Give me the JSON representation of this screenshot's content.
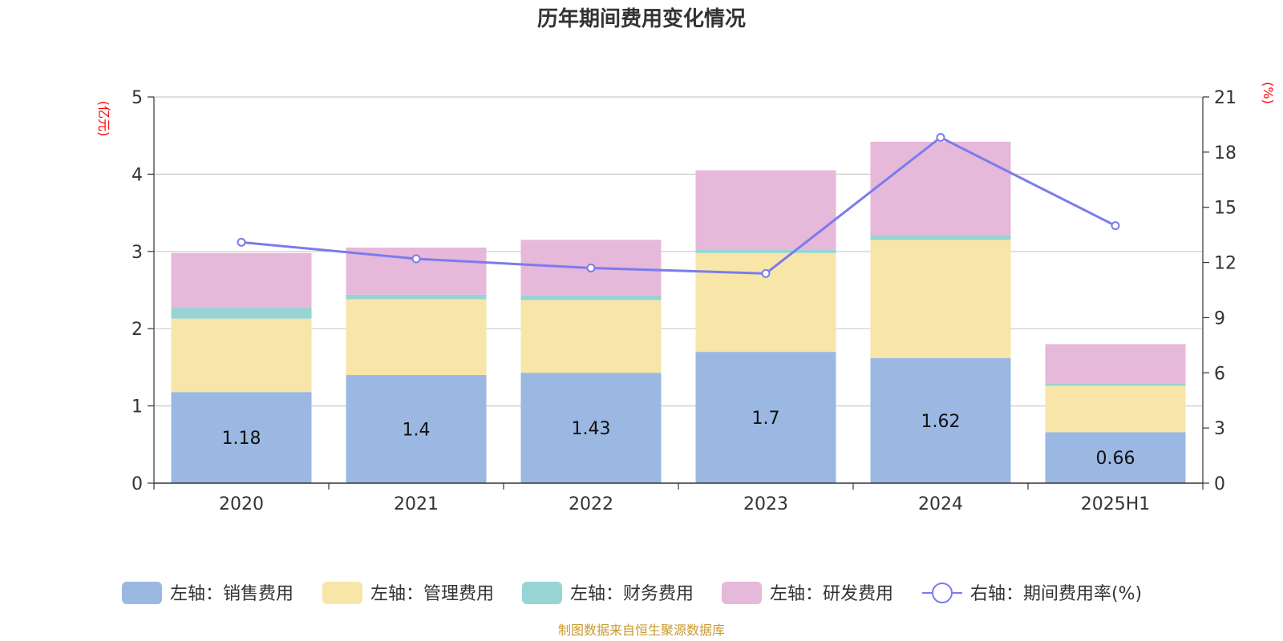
{
  "chart_data": {
    "type": "bar",
    "stacked": true,
    "title": "历年期间费用变化情况",
    "y_left_unit": "(亿元)",
    "y_right_unit": "(%)",
    "categories": [
      "2020",
      "2021",
      "2022",
      "2023",
      "2024",
      "2025H1"
    ],
    "y_left_ticks": [
      "0",
      "1",
      "2",
      "3",
      "4",
      "5"
    ],
    "y_right_ticks": [
      "0",
      "3",
      "6",
      "9",
      "12",
      "15",
      "18",
      "21"
    ],
    "ylim_left": [
      0,
      5
    ],
    "ylim_right": [
      0,
      21
    ],
    "grid": true,
    "legend_position": "bottom",
    "series": [
      {
        "name": "左轴：销售费用",
        "axis": "left",
        "type": "bar",
        "color": "#9bb8e2",
        "values": [
          1.18,
          1.4,
          1.43,
          1.7,
          1.62,
          0.66
        ],
        "labels": [
          "1.18",
          "1.4",
          "1.43",
          "1.7",
          "1.62",
          "0.66"
        ]
      },
      {
        "name": "左轴：管理费用",
        "axis": "left",
        "type": "bar",
        "color": "#f7e6a8",
        "values": [
          0.95,
          0.98,
          0.94,
          1.28,
          1.53,
          0.6
        ]
      },
      {
        "name": "左轴：财务费用",
        "axis": "left",
        "type": "bar",
        "color": "#98d4d4",
        "values": [
          0.15,
          0.06,
          0.06,
          0.04,
          0.06,
          0.03
        ]
      },
      {
        "name": "左轴：研发费用",
        "axis": "left",
        "type": "bar",
        "color": "#e6b8d9",
        "values": [
          0.7,
          0.61,
          0.72,
          1.03,
          1.21,
          0.51
        ]
      },
      {
        "name": "右轴：期间费用率(%)",
        "axis": "right",
        "type": "line",
        "color": "#7b7bee",
        "values": [
          13.1,
          12.2,
          11.7,
          11.4,
          18.8,
          14.0
        ]
      }
    ],
    "source": "制图数据来自恒生聚源数据库"
  }
}
